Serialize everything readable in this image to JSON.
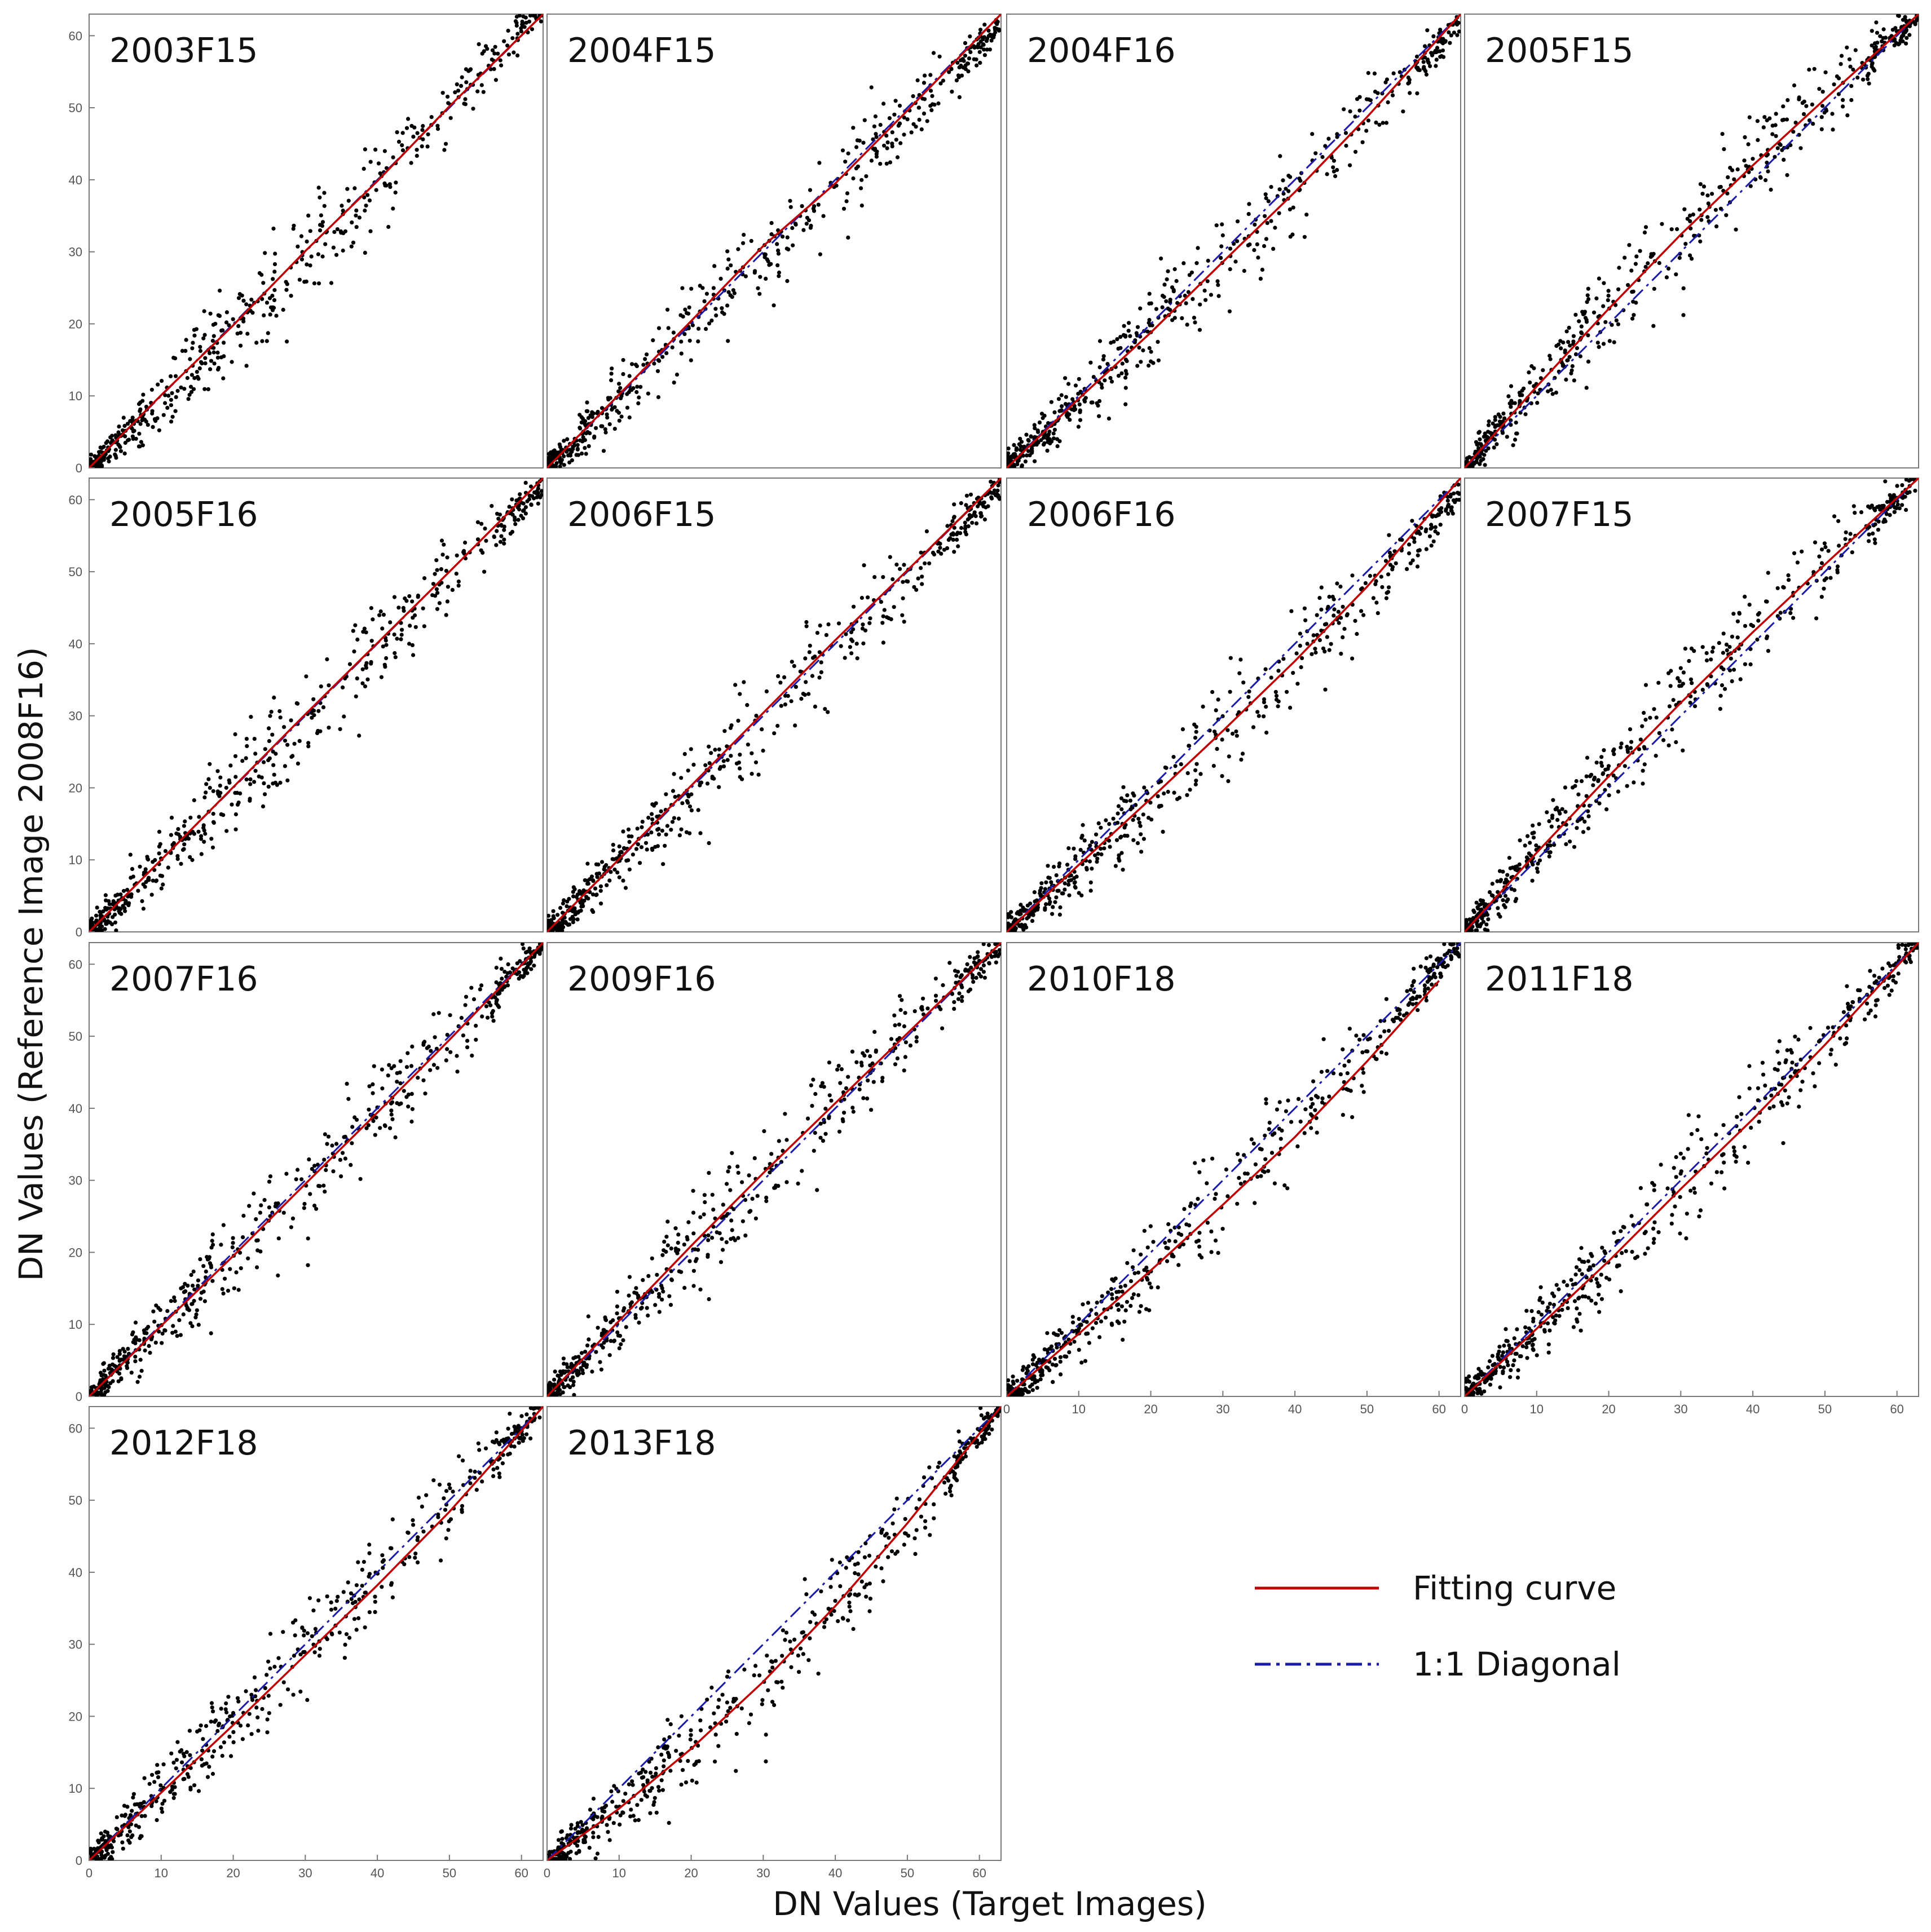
{
  "figure": {
    "xlabel": "DN Values (Target Images)",
    "ylabel": "DN Values (Reference Image 2008F16)"
  },
  "legend": {
    "placement": "bottom-right",
    "entries": [
      {
        "label": "Fitting curve",
        "style": "solid",
        "color": "#c00000"
      },
      {
        "label": "1:1 Diagonal",
        "style": "dash-dot",
        "color": "#1a1aa6"
      }
    ]
  },
  "colors": {
    "points": "#000000",
    "fit": "#c00000",
    "diagonal": "#1a1aa6",
    "frame": "#777777"
  },
  "chart_data": [
    {
      "type": "scatter",
      "title": "2003F15",
      "xlim": [
        0,
        63
      ],
      "ylim": [
        0,
        63
      ],
      "xticks": [],
      "yticks": [
        0,
        10,
        20,
        30,
        40,
        50,
        60
      ],
      "fit": {
        "a": 0.0018,
        "b": 0.91,
        "c": 0
      },
      "curve": [
        [
          0,
          0
        ],
        [
          10,
          10.1
        ],
        [
          20,
          19.8
        ],
        [
          30,
          30.1
        ],
        [
          40,
          39.8
        ],
        [
          50,
          50.2
        ],
        [
          63,
          63
        ]
      ]
    },
    {
      "type": "scatter",
      "title": "2004F15",
      "xlim": [
        0,
        63
      ],
      "ylim": [
        0,
        63
      ],
      "xticks": [],
      "yticks": [],
      "fit": {
        "a": 0,
        "b": 0.975,
        "c": 0
      },
      "curve": [
        [
          0,
          0
        ],
        [
          10,
          10.2
        ],
        [
          20,
          20.4
        ],
        [
          30,
          30.8
        ],
        [
          40,
          39.5
        ],
        [
          50,
          49.6
        ],
        [
          63,
          63
        ]
      ]
    },
    {
      "type": "scatter",
      "title": "2004F16",
      "xlim": [
        0,
        63
      ],
      "ylim": [
        0,
        63
      ],
      "xticks": [],
      "yticks": [],
      "fit": {
        "a": 0.0009,
        "b": 0.92,
        "c": 0
      },
      "curve": [
        [
          0,
          0
        ],
        [
          10,
          9.6
        ],
        [
          20,
          18.8
        ],
        [
          30,
          28.6
        ],
        [
          40,
          38.3
        ],
        [
          50,
          48.7
        ],
        [
          63,
          63
        ]
      ]
    },
    {
      "type": "scatter",
      "title": "2005F15",
      "xlim": [
        0,
        63
      ],
      "ylim": [
        0,
        63
      ],
      "xticks": [],
      "yticks": [],
      "fit": {
        "a": -0.0024,
        "b": 1.15,
        "c": 0
      },
      "curve": [
        [
          0,
          0
        ],
        [
          10,
          11.3
        ],
        [
          20,
          22.1
        ],
        [
          30,
          32.4
        ],
        [
          40,
          42.0
        ],
        [
          50,
          51.2
        ],
        [
          63,
          63
        ]
      ]
    },
    {
      "type": "scatter",
      "title": "2005F16",
      "xlim": [
        0,
        63
      ],
      "ylim": [
        0,
        63
      ],
      "xticks": [],
      "yticks": [
        0,
        10,
        20,
        30,
        40,
        50,
        60
      ],
      "fit": {
        "a": 0,
        "b": 0.985,
        "c": 0
      },
      "curve": [
        [
          0,
          0
        ],
        [
          10,
          10.0
        ],
        [
          20,
          20.1
        ],
        [
          30,
          30.2
        ],
        [
          40,
          40.1
        ],
        [
          50,
          50.0
        ],
        [
          63,
          63
        ]
      ]
    },
    {
      "type": "scatter",
      "title": "2006F15",
      "xlim": [
        0,
        63
      ],
      "ylim": [
        0,
        63
      ],
      "xticks": [],
      "yticks": [],
      "fit": {
        "a": 0,
        "b": 0.985,
        "c": 0
      },
      "curve": [
        [
          0,
          0
        ],
        [
          10,
          10.1
        ],
        [
          20,
          20.3
        ],
        [
          30,
          30.4
        ],
        [
          40,
          40.5
        ],
        [
          50,
          50.2
        ],
        [
          63,
          63
        ]
      ]
    },
    {
      "type": "scatter",
      "title": "2006F16",
      "xlim": [
        0,
        63
      ],
      "ylim": [
        0,
        63
      ],
      "xticks": [],
      "yticks": [],
      "fit": {
        "a": 0.001,
        "b": 0.9,
        "c": 0
      },
      "curve": [
        [
          0,
          0
        ],
        [
          10,
          9.3
        ],
        [
          20,
          18.5
        ],
        [
          30,
          27.9
        ],
        [
          40,
          37.6
        ],
        [
          50,
          47.9
        ],
        [
          63,
          63
        ]
      ]
    },
    {
      "type": "scatter",
      "title": "2007F15",
      "xlim": [
        0,
        63
      ],
      "ylim": [
        0,
        63
      ],
      "xticks": [],
      "yticks": [],
      "fit": {
        "a": -0.002,
        "b": 1.12,
        "c": 0
      },
      "curve": [
        [
          0,
          0
        ],
        [
          10,
          11.0
        ],
        [
          20,
          21.6
        ],
        [
          30,
          31.8
        ],
        [
          40,
          41.6
        ],
        [
          50,
          51.0
        ],
        [
          63,
          63
        ]
      ]
    },
    {
      "type": "scatter",
      "title": "2007F16",
      "xlim": [
        0,
        63
      ],
      "ylim": [
        0,
        63
      ],
      "xticks": [],
      "yticks": [
        0,
        10,
        20,
        30,
        40,
        50,
        60
      ],
      "fit": {
        "a": 0.0006,
        "b": 0.96,
        "c": 0
      },
      "curve": [
        [
          0,
          0
        ],
        [
          10,
          9.8
        ],
        [
          20,
          19.5
        ],
        [
          30,
          29.5
        ],
        [
          40,
          39.4
        ],
        [
          50,
          49.5
        ],
        [
          63,
          63
        ]
      ]
    },
    {
      "type": "scatter",
      "title": "2009F16",
      "xlim": [
        0,
        63
      ],
      "ylim": [
        0,
        63
      ],
      "xticks": [],
      "yticks": [],
      "fit": {
        "a": -0.001,
        "b": 1.06,
        "c": 0
      },
      "curve": [
        [
          0,
          0
        ],
        [
          10,
          10.5
        ],
        [
          20,
          20.9
        ],
        [
          30,
          31.0
        ],
        [
          40,
          40.7
        ],
        [
          50,
          50.4
        ],
        [
          63,
          63
        ]
      ]
    },
    {
      "type": "scatter",
      "title": "2010F18",
      "xlim": [
        0,
        63
      ],
      "ylim": [
        0,
        63
      ],
      "xticks": [
        0,
        10,
        20,
        30,
        40,
        50,
        60
      ],
      "yticks": [],
      "fit": {
        "a": 0.0024,
        "b": 0.85,
        "c": 0
      },
      "curve": [
        [
          0,
          0
        ],
        [
          10,
          8.7
        ],
        [
          20,
          17.5
        ],
        [
          30,
          26.6
        ],
        [
          40,
          36.0
        ],
        [
          50,
          46.5
        ],
        [
          60,
          57.7
        ]
      ]
    },
    {
      "type": "scatter",
      "title": "2011F18",
      "xlim": [
        0,
        63
      ],
      "ylim": [
        0,
        63
      ],
      "xticks": [
        0,
        10,
        20,
        30,
        40,
        50,
        60
      ],
      "yticks": [],
      "fit": {
        "a": 0.0011,
        "b": 0.93,
        "c": 0
      },
      "curve": [
        [
          0,
          0
        ],
        [
          10,
          9.4
        ],
        [
          20,
          18.8
        ],
        [
          30,
          28.8
        ],
        [
          40,
          38.5
        ],
        [
          50,
          48.8
        ],
        [
          63,
          63
        ]
      ]
    },
    {
      "type": "scatter",
      "title": "2012F18",
      "xlim": [
        0,
        63
      ],
      "ylim": [
        0,
        63
      ],
      "xticks": [
        0,
        10,
        20,
        30,
        40,
        50,
        60
      ],
      "yticks": [
        0,
        10,
        20,
        30,
        40,
        50,
        60
      ],
      "fit": {
        "a": 0.0011,
        "b": 0.93,
        "c": 0
      },
      "curve": [
        [
          0,
          0
        ],
        [
          10,
          9.4
        ],
        [
          20,
          18.8
        ],
        [
          30,
          28.5
        ],
        [
          40,
          38.2
        ],
        [
          50,
          48.4
        ],
        [
          63,
          63
        ]
      ]
    },
    {
      "type": "scatter",
      "title": "2013F18",
      "xlim": [
        0,
        63
      ],
      "ylim": [
        0,
        63
      ],
      "xticks": [
        0,
        10,
        20,
        30,
        40,
        50,
        60
      ],
      "yticks": [],
      "fit": {
        "a": 0.0053,
        "b": 0.67,
        "c": 0
      },
      "curve": [
        [
          0,
          0
        ],
        [
          10,
          7.2
        ],
        [
          20,
          15.5
        ],
        [
          30,
          24.8
        ],
        [
          40,
          35.3
        ],
        [
          50,
          46.8
        ],
        [
          63,
          63
        ]
      ]
    }
  ]
}
